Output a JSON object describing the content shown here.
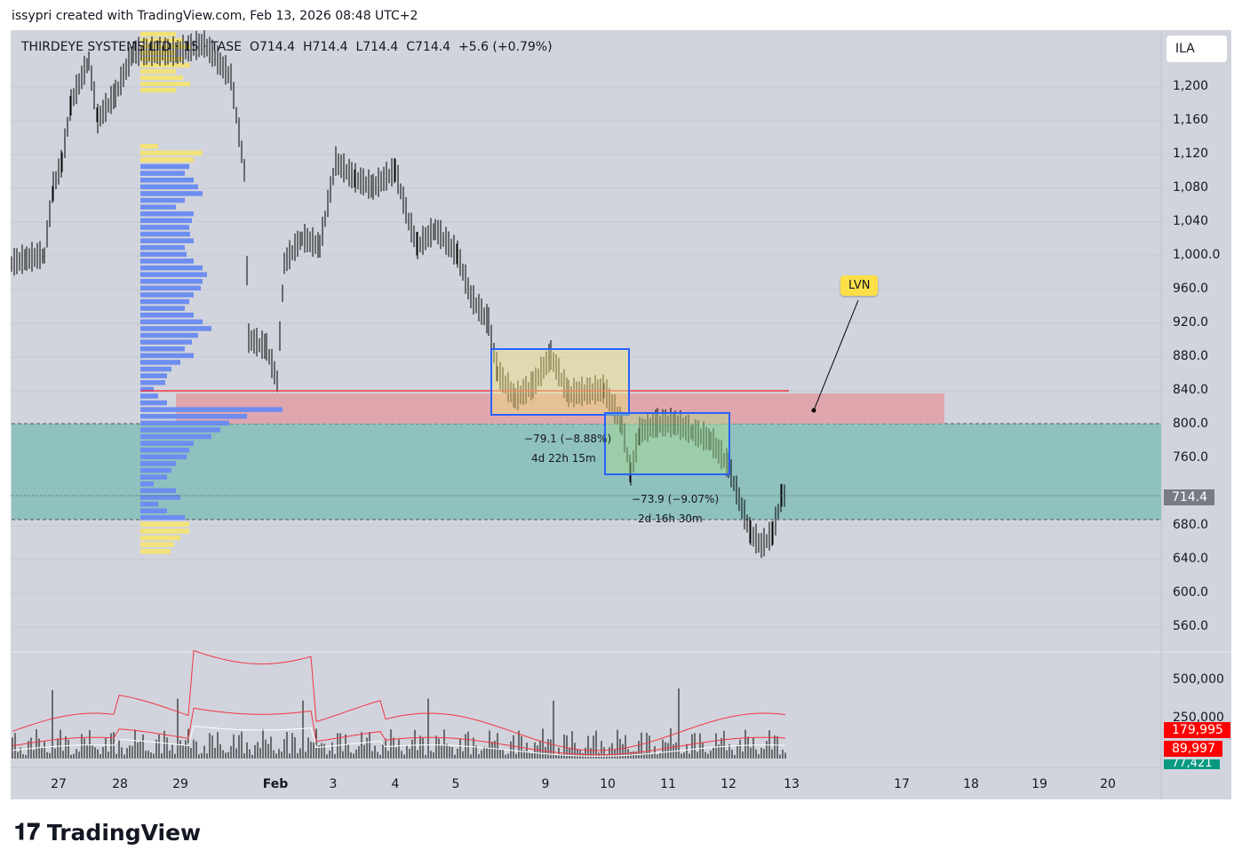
{
  "caption": "issypri created with TradingView.com, Feb 13, 2026 08:48 UTC+2",
  "legend": "THIRDEYE SYSTEMS LTD · 15 · TASE  O714.4  H714.4  L714.4  C714.4  +5.6 (+0.79%)",
  "currency": "ILA",
  "price_axis": [
    "1,200",
    "1,160",
    "1,120",
    "1,080",
    "1,040",
    "1,000.0",
    "960.0",
    "920.0",
    "880.0",
    "840.0",
    "800.0",
    "760.0",
    "680.0",
    "640.0",
    "600.0",
    "560.0"
  ],
  "price_values": [
    1200,
    1160,
    1120,
    1080,
    1040,
    1000,
    960,
    920,
    880,
    840,
    800,
    760,
    680,
    640,
    600,
    560
  ],
  "last_price": "714.4",
  "volume_axis": [
    "500,000",
    "250,000"
  ],
  "volume_tags": {
    "ma_slow": "179,995",
    "ma_fast": "89,997",
    "volume": "77,421"
  },
  "time_axis": [
    "27",
    "28",
    "29",
    "Feb",
    "3",
    "4",
    "5",
    "9",
    "10",
    "11",
    "12",
    "13",
    "17",
    "18",
    "19",
    "20"
  ],
  "annotations": {
    "lvn": "LVN",
    "m1_change": "−79.1 (−8.88%)",
    "m1_time": "4d 22h 15m",
    "m2_change": "−73.9 (−9.07%)",
    "m2_time": "2d 16h 30m"
  },
  "price_path": [
    [
      13,
      990
    ],
    [
      30,
      995
    ],
    [
      50,
      1000
    ],
    [
      60,
      1080
    ],
    [
      70,
      1110
    ],
    [
      80,
      1180
    ],
    [
      100,
      1230
    ],
    [
      110,
      1160
    ],
    [
      130,
      1190
    ],
    [
      150,
      1240
    ],
    [
      200,
      1240
    ],
    [
      230,
      1250
    ],
    [
      260,
      1210
    ],
    [
      275,
      1100
    ],
    [
      280,
      900
    ],
    [
      300,
      890
    ],
    [
      312,
      850
    ],
    [
      320,
      990
    ],
    [
      340,
      1020
    ],
    [
      360,
      1010
    ],
    [
      378,
      1110
    ],
    [
      400,
      1090
    ],
    [
      420,
      1080
    ],
    [
      445,
      1100
    ],
    [
      460,
      1040
    ],
    [
      470,
      1010
    ],
    [
      490,
      1030
    ],
    [
      515,
      1000
    ],
    [
      530,
      950
    ],
    [
      550,
      920
    ],
    [
      560,
      860
    ],
    [
      580,
      830
    ],
    [
      600,
      845
    ],
    [
      620,
      880
    ],
    [
      640,
      835
    ],
    [
      680,
      840
    ],
    [
      700,
      800
    ],
    [
      710,
      740
    ],
    [
      720,
      790
    ],
    [
      740,
      800
    ],
    [
      760,
      800
    ],
    [
      780,
      790
    ],
    [
      800,
      780
    ],
    [
      820,
      750
    ],
    [
      835,
      700
    ],
    [
      845,
      670
    ],
    [
      857,
      655
    ],
    [
      870,
      670
    ],
    [
      880,
      715
    ],
    [
      886,
      714
    ]
  ],
  "volume_profile": [
    20,
    70,
    60,
    55,
    50,
    60,
    65,
    70,
    50,
    40,
    60,
    58,
    55,
    56,
    60,
    50,
    52,
    60,
    70,
    75,
    70,
    68,
    60,
    55,
    50,
    60,
    70,
    80,
    65,
    58,
    50,
    60,
    45,
    35,
    30,
    28,
    15,
    20,
    30,
    160,
    120,
    100,
    90,
    80,
    60,
    55,
    52,
    40,
    35,
    30,
    15,
    40,
    45,
    20,
    30,
    50,
    55,
    55,
    45,
    38,
    34
  ],
  "colors": {
    "teal_zone": "#8fc1bf",
    "pink_zone": "#dfa6ae",
    "red_line": "#f23645",
    "box_blue": "#2962ff",
    "profile_blue": "#6d8df0",
    "profile_yellow": "#f2e27a"
  }
}
